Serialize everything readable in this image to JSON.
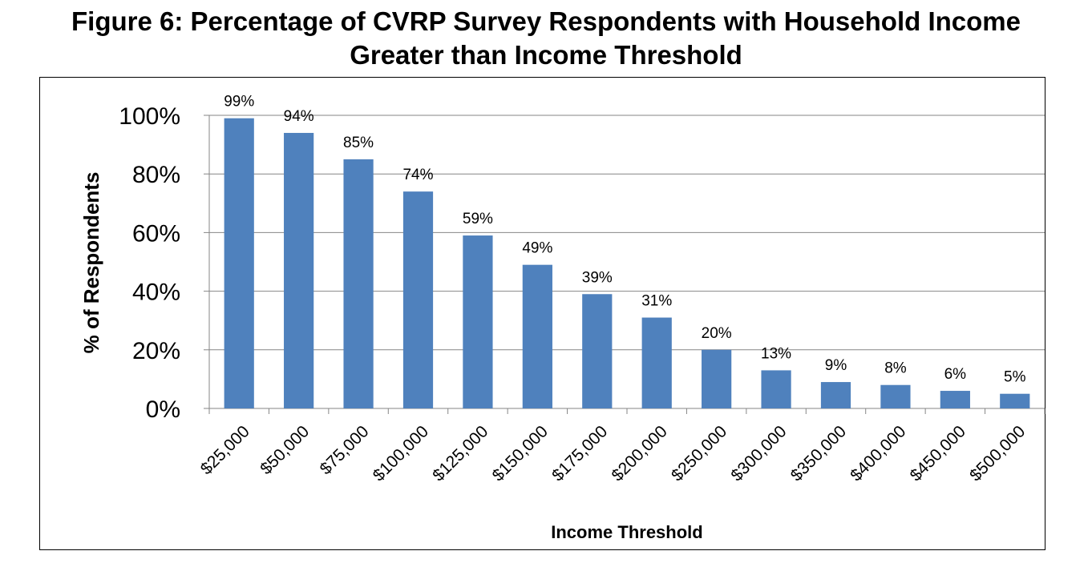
{
  "figure": {
    "title_line1": "Figure 6:  Percentage of CVRP Survey Respondents with Household Income",
    "title_line2": "Greater than Income Threshold"
  },
  "chart_data": {
    "type": "bar",
    "title": "Figure 6:  Percentage of CVRP Survey Respondents with Household Income Greater than Income Threshold",
    "xlabel": "Income Threshold",
    "ylabel": "% of Respondents",
    "categories": [
      "$25,000",
      "$50,000",
      "$75,000",
      "$100,000",
      "$125,000",
      "$150,000",
      "$175,000",
      "$200,000",
      "$250,000",
      "$300,000",
      "$350,000",
      "$400,000",
      "$450,000",
      "$500,000"
    ],
    "values": [
      99,
      94,
      85,
      74,
      59,
      49,
      39,
      31,
      20,
      13,
      9,
      8,
      6,
      5
    ],
    "data_labels": [
      "99%",
      "94%",
      "85%",
      "74%",
      "59%",
      "49%",
      "39%",
      "31%",
      "20%",
      "13%",
      "9%",
      "8%",
      "6%",
      "5%"
    ],
    "ylim": [
      0,
      100
    ],
    "yticks": [
      0,
      20,
      40,
      60,
      80,
      100
    ],
    "ytick_labels": [
      "0%",
      "20%",
      "40%",
      "60%",
      "80%",
      "100%"
    ],
    "grid": true,
    "legend": "none",
    "bar_color": "#4F81BD",
    "grid_color": "#868686"
  }
}
